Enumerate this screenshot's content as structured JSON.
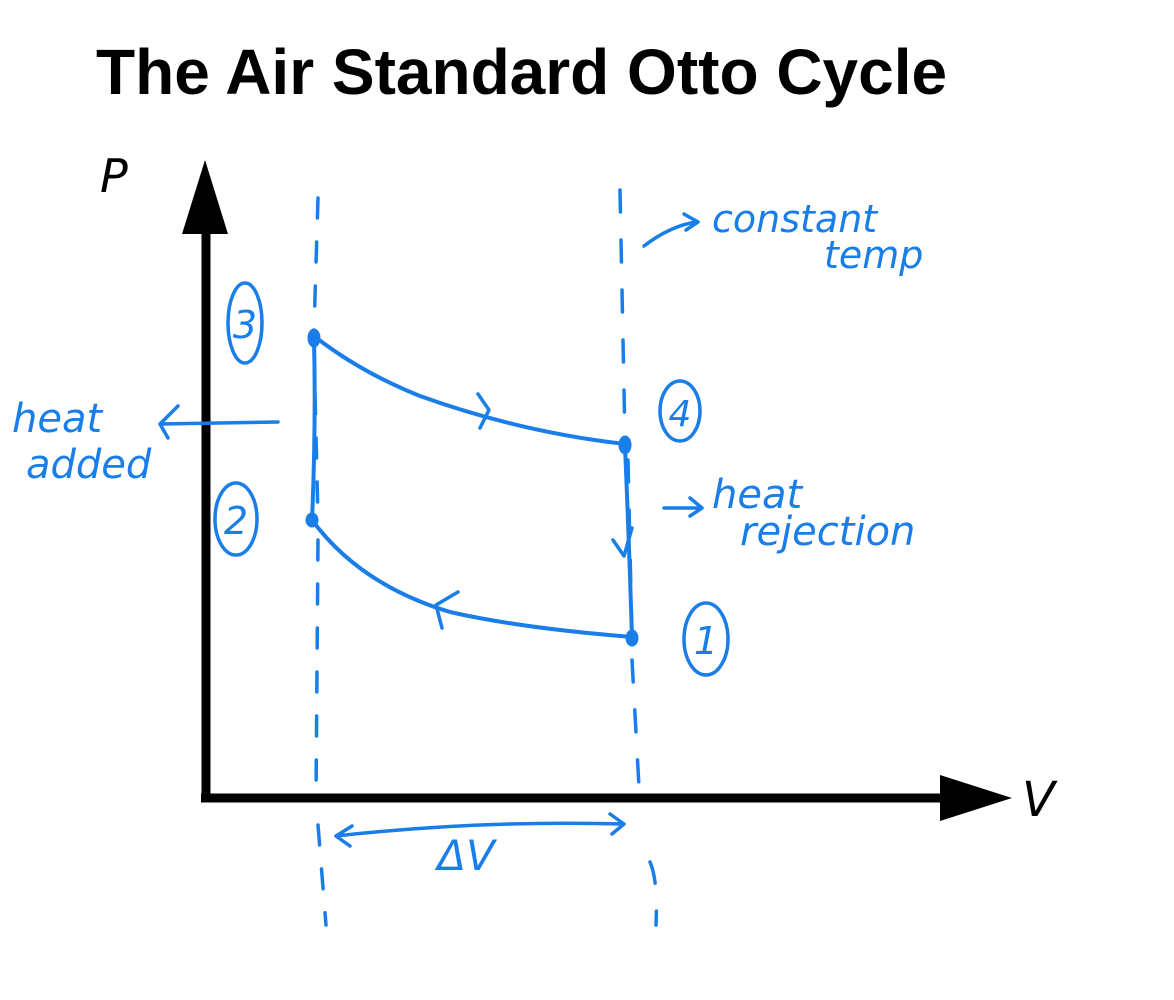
{
  "title": "The Air Standard Otto Cycle",
  "axes": {
    "y_label": "P",
    "x_label": "V"
  },
  "states": [
    "3",
    "4",
    "2",
    "1"
  ],
  "annotations": {
    "heat_added": [
      "heat",
      "added"
    ],
    "constant_temp": [
      "constant",
      "temp"
    ],
    "heat_rejection": [
      "heat",
      "rejection"
    ],
    "delta_v": "ΔV"
  },
  "colors": {
    "ink": "#1a7ee8",
    "axis": "#000000",
    "background": "#ffffff"
  }
}
